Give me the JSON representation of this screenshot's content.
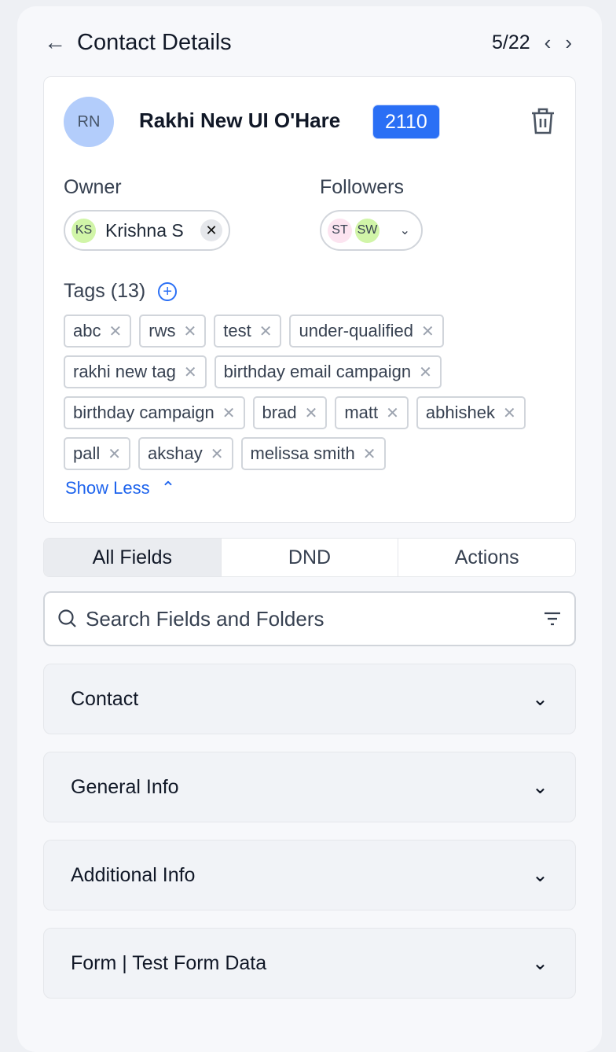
{
  "header": {
    "title": "Contact Details",
    "pager": "5/22"
  },
  "contact": {
    "initials": "RN",
    "name": "Rakhi New UI O'Hare",
    "id_badge": "2110"
  },
  "owner": {
    "label": "Owner",
    "initials": "KS",
    "name": "Krishna S"
  },
  "followers": {
    "label": "Followers",
    "items": [
      "ST",
      "SW"
    ]
  },
  "tags": {
    "label": "Tags (13)",
    "items": [
      "abc",
      "rws",
      "test",
      "under-qualified",
      "rakhi new tag",
      "birthday email campaign",
      "birthday campaign",
      "brad",
      "matt",
      "abhishek",
      "pall",
      "akshay",
      "melissa smith"
    ],
    "show_less": "Show Less"
  },
  "tabs": [
    {
      "label": "All Fields",
      "active": true
    },
    {
      "label": "DND"
    },
    {
      "label": "Actions"
    }
  ],
  "search": {
    "placeholder": "Search Fields and Folders"
  },
  "sections": [
    "Contact",
    "General Info",
    "Additional Info",
    "Form | Test Form Data"
  ],
  "colors": {
    "accent": "#2a6ff5",
    "link": "#1d63ed"
  }
}
